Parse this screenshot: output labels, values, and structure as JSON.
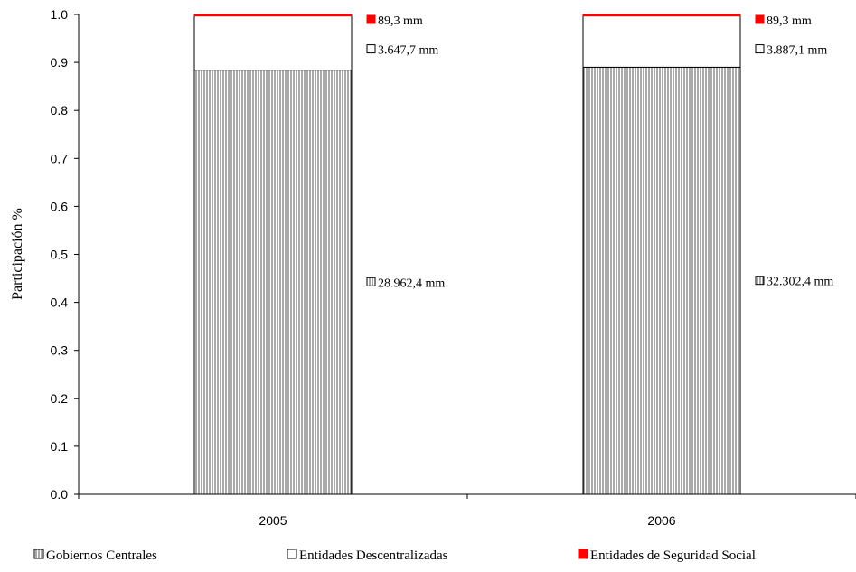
{
  "chart_data": {
    "type": "bar",
    "stacked": true,
    "categories": [
      "2005",
      "2006"
    ],
    "series": [
      {
        "name": "Gobiernos Centrales",
        "values": [
          0.884,
          0.89
        ],
        "pattern": "vertical-hatch",
        "labels": [
          "28.962,4 mm",
          "32.302,4 mm"
        ]
      },
      {
        "name": "Entidades Descentralizadas",
        "values": [
          0.113,
          0.107
        ],
        "pattern": "none",
        "color": "#ffffff",
        "labels": [
          "3.647,7 mm",
          "3.887,1 mm"
        ]
      },
      {
        "name": "Entidades de Seguridad Social",
        "values": [
          0.003,
          0.003
        ],
        "color": "#ff0000",
        "labels": [
          "89,3 mm",
          "89,3 mm"
        ]
      }
    ],
    "ylabel": "Participación %",
    "xlabel": "",
    "ylim": [
      0,
      1.0
    ],
    "yticks": [
      "0.0",
      "0.1",
      "0.2",
      "0.3",
      "0.4",
      "0.5",
      "0.6",
      "0.7",
      "0.8",
      "0.9",
      "1.0"
    ],
    "grid": false,
    "legend_position": "bottom"
  },
  "colors": {
    "axis": "#000000",
    "hatch_line": "#555555",
    "bar_fill": "#ffffff",
    "accent": "#ff0000"
  }
}
